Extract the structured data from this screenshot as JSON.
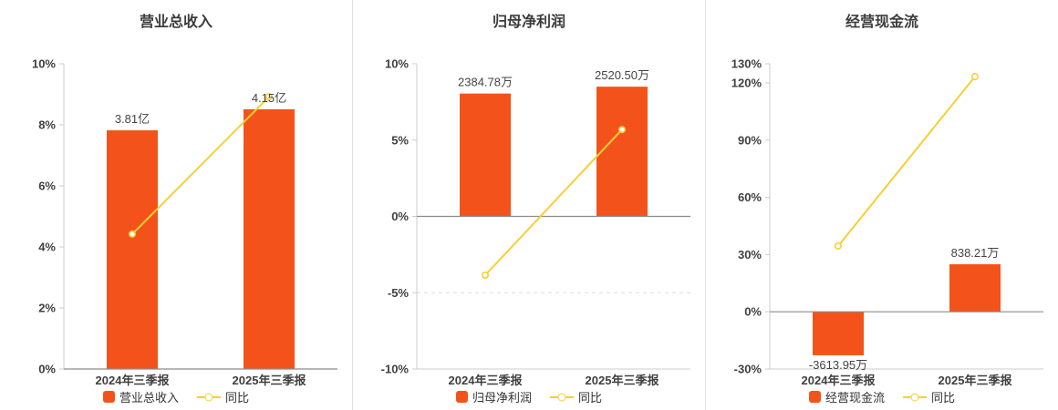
{
  "colors": {
    "bar": "#f3531b",
    "line": "#f7cf35",
    "marker_fill": "#ffffff",
    "title_text": "#3c3c3c",
    "axis_text": "#404040",
    "value_text": "#444444",
    "axis_line": "#cccccc",
    "zero_line": "#8c8c8c",
    "grid_dashed": "#dddddd",
    "panel_divider": "#e0e0e0"
  },
  "chart_data": [
    {
      "type": "bar+line",
      "title": "营业总收入",
      "categories": [
        "2024年三季报",
        "2025年三季报"
      ],
      "series": [
        {
          "name": "营业总收入",
          "type": "bar",
          "value_labels": [
            "3.81亿",
            "4.15亿"
          ],
          "display_values_pct": [
            7.82,
            8.51
          ]
        },
        {
          "name": "同比",
          "type": "line",
          "values_pct": [
            4.42,
            8.92
          ]
        }
      ],
      "ylim": [
        0,
        10
      ],
      "yticks": [
        {
          "v": 0,
          "label": "0%"
        },
        {
          "v": 2,
          "label": "2%"
        },
        {
          "v": 4,
          "label": "4%"
        },
        {
          "v": 6,
          "label": "6%"
        },
        {
          "v": 8,
          "label": "8%"
        },
        {
          "v": 10,
          "label": "10%"
        }
      ],
      "legend_position": "bottom",
      "grid": "off"
    },
    {
      "type": "bar+line",
      "title": "归母净利润",
      "categories": [
        "2024年三季报",
        "2025年三季报"
      ],
      "series": [
        {
          "name": "归母净利润",
          "type": "bar",
          "value_labels": [
            "2384.78万",
            "2520.50万"
          ],
          "display_values_pct": [
            8.05,
            8.5
          ]
        },
        {
          "name": "同比",
          "type": "line",
          "values_pct": [
            -3.85,
            5.69
          ]
        }
      ],
      "ylim": [
        -10,
        10
      ],
      "yticks": [
        {
          "v": -10,
          "label": "-10%"
        },
        {
          "v": -5,
          "label": "-5%"
        },
        {
          "v": 0,
          "label": "0%"
        },
        {
          "v": 5,
          "label": "5%"
        },
        {
          "v": 10,
          "label": "10%"
        }
      ],
      "legend_position": "bottom",
      "grid": "off"
    },
    {
      "type": "bar+line",
      "title": "经营现金流",
      "categories": [
        "2024年三季报",
        "2025年三季报"
      ],
      "series": [
        {
          "name": "经营现金流",
          "type": "bar",
          "value_labels": [
            "-3613.95万",
            "838.21万"
          ],
          "display_values_pct": [
            -22.8,
            24.9
          ]
        },
        {
          "name": "同比",
          "type": "line",
          "values_pct": [
            34.5,
            123.3
          ]
        }
      ],
      "ylim": [
        -30,
        130
      ],
      "yticks": [
        {
          "v": -30,
          "label": "-30%"
        },
        {
          "v": 0,
          "label": "0%"
        },
        {
          "v": 30,
          "label": "30%"
        },
        {
          "v": 60,
          "label": "60%"
        },
        {
          "v": 90,
          "label": "90%"
        },
        {
          "v": 120,
          "label": "120%"
        },
        {
          "v": 130,
          "label": "130%"
        }
      ],
      "legend_position": "bottom",
      "grid": "off"
    }
  ]
}
